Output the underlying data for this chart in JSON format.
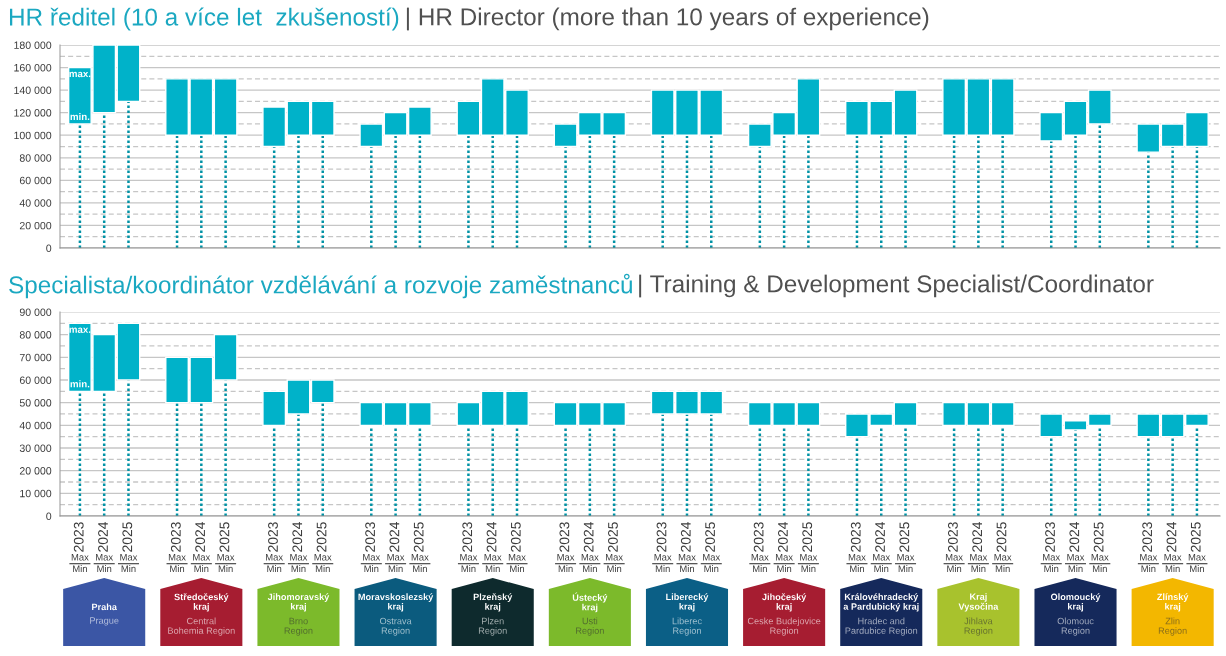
{
  "chart_data": [
    {
      "type": "bar",
      "title": "HR ředitel (10 a více let  zkušeností)",
      "subtitle": "| HR Director (more than 10 years of experience)",
      "categories": [
        null,
        null,
        null,
        null,
        null,
        null,
        null,
        null,
        null,
        null,
        null,
        null,
        null,
        null,
        null,
        null,
        null,
        null,
        null,
        null,
        null,
        null,
        null,
        null,
        null,
        null,
        null,
        null,
        null,
        null,
        null,
        null,
        null,
        null,
        null,
        null,
        null,
        null,
        null,
        null,
        null,
        null,
        null,
        null,
        null,
        null,
        null
      ],
      "color": "#00b2c9",
      "base": [
        110000,
        120000,
        130000,
        null,
        100000,
        100000,
        100000,
        null,
        90000,
        100000,
        100000,
        null,
        90000,
        100000,
        100000,
        null,
        100000,
        100000,
        100000,
        null,
        90000,
        100000,
        100000,
        null,
        100000,
        100000,
        100000,
        null,
        90000,
        100000,
        100000,
        null,
        100000,
        100000,
        100000,
        null,
        100000,
        100000,
        100000,
        null,
        95000,
        100000,
        110000,
        null,
        85000,
        90000,
        90000
      ],
      "values": [
        50000,
        60000,
        50000,
        null,
        50000,
        50000,
        50000,
        null,
        35000,
        30000,
        30000,
        null,
        20000,
        20000,
        25000,
        null,
        30000,
        50000,
        40000,
        null,
        20000,
        20000,
        20000,
        null,
        40000,
        40000,
        40000,
        null,
        20000,
        20000,
        50000,
        null,
        30000,
        30000,
        40000,
        null,
        50000,
        50000,
        50000,
        null,
        25000,
        30000,
        30000,
        null,
        25000,
        20000,
        30000
      ],
      "errors": [
        [
          0,
          110000
        ],
        [
          0,
          120000
        ],
        [
          0,
          130000
        ],
        null,
        [
          0,
          100000
        ],
        [
          0,
          100000
        ],
        [
          0,
          100000
        ],
        null,
        [
          0,
          90000
        ],
        [
          0,
          100000
        ],
        [
          0,
          100000
        ],
        null,
        [
          0,
          90000
        ],
        [
          0,
          100000
        ],
        [
          0,
          100000
        ],
        null,
        [
          0,
          100000
        ],
        [
          0,
          100000
        ],
        [
          0,
          100000
        ],
        null,
        [
          0,
          90000
        ],
        [
          0,
          100000
        ],
        [
          0,
          100000
        ],
        null,
        [
          0,
          100000
        ],
        [
          0,
          100000
        ],
        [
          0,
          100000
        ],
        null,
        [
          0,
          90000
        ],
        [
          0,
          100000
        ],
        [
          0,
          100000
        ],
        null,
        [
          0,
          100000
        ],
        [
          0,
          100000
        ],
        [
          0,
          100000
        ],
        null,
        [
          0,
          100000
        ],
        [
          0,
          100000
        ],
        [
          0,
          100000
        ],
        null,
        [
          0,
          95000
        ],
        [
          0,
          100000
        ],
        [
          0,
          110000
        ],
        null,
        [
          0,
          85000
        ],
        [
          0,
          90000
        ],
        [
          0,
          90000
        ]
      ],
      "ylim": [
        0,
        180000
      ],
      "yticks": [
        0,
        {
          "value": 10000,
          "label": null
        },
        {
          "value": 20000,
          "label": "20 000"
        },
        {
          "value": 30000,
          "label": null
        },
        {
          "value": 40000,
          "label": "40 000"
        },
        {
          "value": 50000,
          "label": null
        },
        {
          "value": 60000,
          "label": "60 000"
        },
        {
          "value": 70000,
          "label": null
        },
        {
          "value": 80000,
          "label": "80 000"
        },
        {
          "value": 90000,
          "label": null
        },
        {
          "value": 100000,
          "label": "100 000"
        },
        {
          "value": 110000,
          "label": null
        },
        {
          "value": 120000,
          "label": "120 000"
        },
        {
          "value": 130000,
          "label": null
        },
        {
          "value": 140000,
          "label": "140 000"
        },
        {
          "value": 150000,
          "label": null
        },
        {
          "value": 160000,
          "label": "160 000"
        },
        {
          "value": 170000,
          "label": null
        },
        {
          "value": 180000,
          "label": "180 000"
        }
      ],
      "grid": "y",
      "annotations": [
        "max.",
        "min."
      ]
    },
    {
      "type": "bar",
      "title": "Specialista/koordinátor vzdělávání a rozvoje zaměstnanců",
      "subtitle": "| Training & Development Specialist/Coordinator",
      "categories": [
        "2023\nMax\nMin",
        "2024\nMax\nMin",
        "2025\nMax\nMin",
        null,
        "2023\nMax\nMin",
        "2024\nMax\nMin",
        "2025\nMax\nMin",
        null,
        "2023\nMax\nMin",
        "2024\nMax\nMin",
        "2025\nMax\nMin",
        null,
        "2023\nMax\nMin",
        "2024\nMax\nMin",
        "2025\nMax\nMin",
        null,
        "2023\nMax\nMin",
        "2024\nMax\nMin",
        "2025\nMax\nMin",
        null,
        "2023\nMax\nMin",
        "2024\nMax\nMin",
        "2025\nMax\nMin",
        null,
        "2023\nMax\nMin",
        "2024\nMax\nMin",
        "2025\nMax\nMin",
        null,
        "2023\nMax\nMin",
        "2024\nMax\nMin",
        "2025\nMax\nMin",
        null,
        "2023\nMax\nMin",
        "2024\nMax\nMin",
        "2025\nMax\nMin",
        null,
        "2023\nMax\nMin",
        "2024\nMax\nMin",
        "2025\nMax\nMin",
        null,
        "2023\nMax\nMin",
        "2024\nMax\nMin",
        "2025\nMax\nMin",
        null,
        "2023\nMax\nMin",
        "2024\nMax\nMin",
        "2025\nMax\nMin"
      ],
      "color": "#00b2c9",
      "base": [
        55000,
        55000,
        60000,
        null,
        50000,
        50000,
        60000,
        null,
        40000,
        45000,
        50000,
        null,
        40000,
        40000,
        40000,
        null,
        40000,
        40000,
        40000,
        null,
        40000,
        40000,
        40000,
        null,
        45000,
        45000,
        45000,
        null,
        40000,
        40000,
        40000,
        null,
        35000,
        40000,
        40000,
        null,
        40000,
        40000,
        40000,
        null,
        35000,
        38000,
        40000,
        null,
        35000,
        35000,
        40000
      ],
      "values": [
        30000,
        25000,
        25000,
        null,
        20000,
        20000,
        20000,
        null,
        15000,
        15000,
        10000,
        null,
        10000,
        10000,
        10000,
        null,
        10000,
        15000,
        15000,
        null,
        10000,
        10000,
        10000,
        null,
        10000,
        10000,
        10000,
        null,
        10000,
        10000,
        10000,
        null,
        10000,
        5000,
        10000,
        null,
        10000,
        10000,
        10000,
        null,
        10000,
        4000,
        5000,
        null,
        10000,
        10000,
        5000
      ],
      "errors": [
        [
          0,
          55000
        ],
        [
          0,
          55000
        ],
        [
          0,
          60000
        ],
        null,
        [
          0,
          50000
        ],
        [
          0,
          50000
        ],
        [
          0,
          60000
        ],
        null,
        [
          0,
          40000
        ],
        [
          0,
          45000
        ],
        [
          0,
          50000
        ],
        null,
        [
          0,
          40000
        ],
        [
          0,
          40000
        ],
        [
          0,
          40000
        ],
        null,
        [
          0,
          40000
        ],
        [
          0,
          40000
        ],
        [
          0,
          40000
        ],
        null,
        [
          0,
          40000
        ],
        [
          0,
          40000
        ],
        [
          0,
          40000
        ],
        null,
        [
          0,
          45000
        ],
        [
          0,
          45000
        ],
        [
          0,
          45000
        ],
        null,
        [
          0,
          40000
        ],
        [
          0,
          40000
        ],
        [
          0,
          40000
        ],
        null,
        [
          0,
          35000
        ],
        [
          0,
          40000
        ],
        [
          0,
          40000
        ],
        null,
        [
          0,
          40000
        ],
        [
          0,
          40000
        ],
        [
          0,
          40000
        ],
        null,
        [
          0,
          35000
        ],
        [
          0,
          38000
        ],
        [
          0,
          40000
        ],
        null,
        [
          0,
          35000
        ],
        [
          0,
          35000
        ],
        [
          0,
          40000
        ]
      ],
      "ylim": [
        0,
        90000
      ],
      "yticks": [
        0,
        {
          "value": 5000,
          "label": null
        },
        {
          "value": 10000,
          "label": "10 000"
        },
        {
          "value": 15000,
          "label": null
        },
        {
          "value": 20000,
          "label": "20 000"
        },
        {
          "value": 25000,
          "label": null
        },
        {
          "value": 30000,
          "label": "30 000"
        },
        {
          "value": 35000,
          "label": null
        },
        {
          "value": 40000,
          "label": "40 000"
        },
        {
          "value": 45000,
          "label": null
        },
        {
          "value": 50000,
          "label": "50 000"
        },
        {
          "value": 55000,
          "label": null
        },
        {
          "value": 60000,
          "label": "60 000"
        },
        {
          "value": 65000,
          "label": null
        },
        {
          "value": 70000,
          "label": "70 000"
        },
        {
          "value": 75000,
          "label": null
        },
        {
          "value": 80000,
          "label": "80 000"
        },
        {
          "value": 85000,
          "label": null
        },
        {
          "value": 90000,
          "label": "90 000"
        }
      ],
      "grid": "y",
      "annotations": [
        "max.",
        "min.",
        "Praha\n\nPrague",
        "Středočeský\nkraj\n\nCentral\nBohemia Region",
        "Jihomoravský\nkraj\n\nBrno\nRegion",
        "Moravskoslezský\nkraj\n\nOstrava\nRegion",
        "Plzeňský\nkraj\n\nPlzen\nRegion",
        "Ústecký\nkraj\n\nUsti\nRegion",
        "Liberecký\nkraj\n\nLiberec\nRegion",
        "Jihočeský\nkraj\n\nCeske Budejovice\nRegion",
        "Královéhradecký\na Pardubický kraj\n\nHradec and\nPardubice Region",
        "Kraj\nVysočina\n\nJihlava\nRegion",
        "Olomoucký\nkraj\n\nOlomouc\nRegion",
        "Zlínský\nkraj\n\nZlin\nRegion"
      ]
    }
  ]
}
